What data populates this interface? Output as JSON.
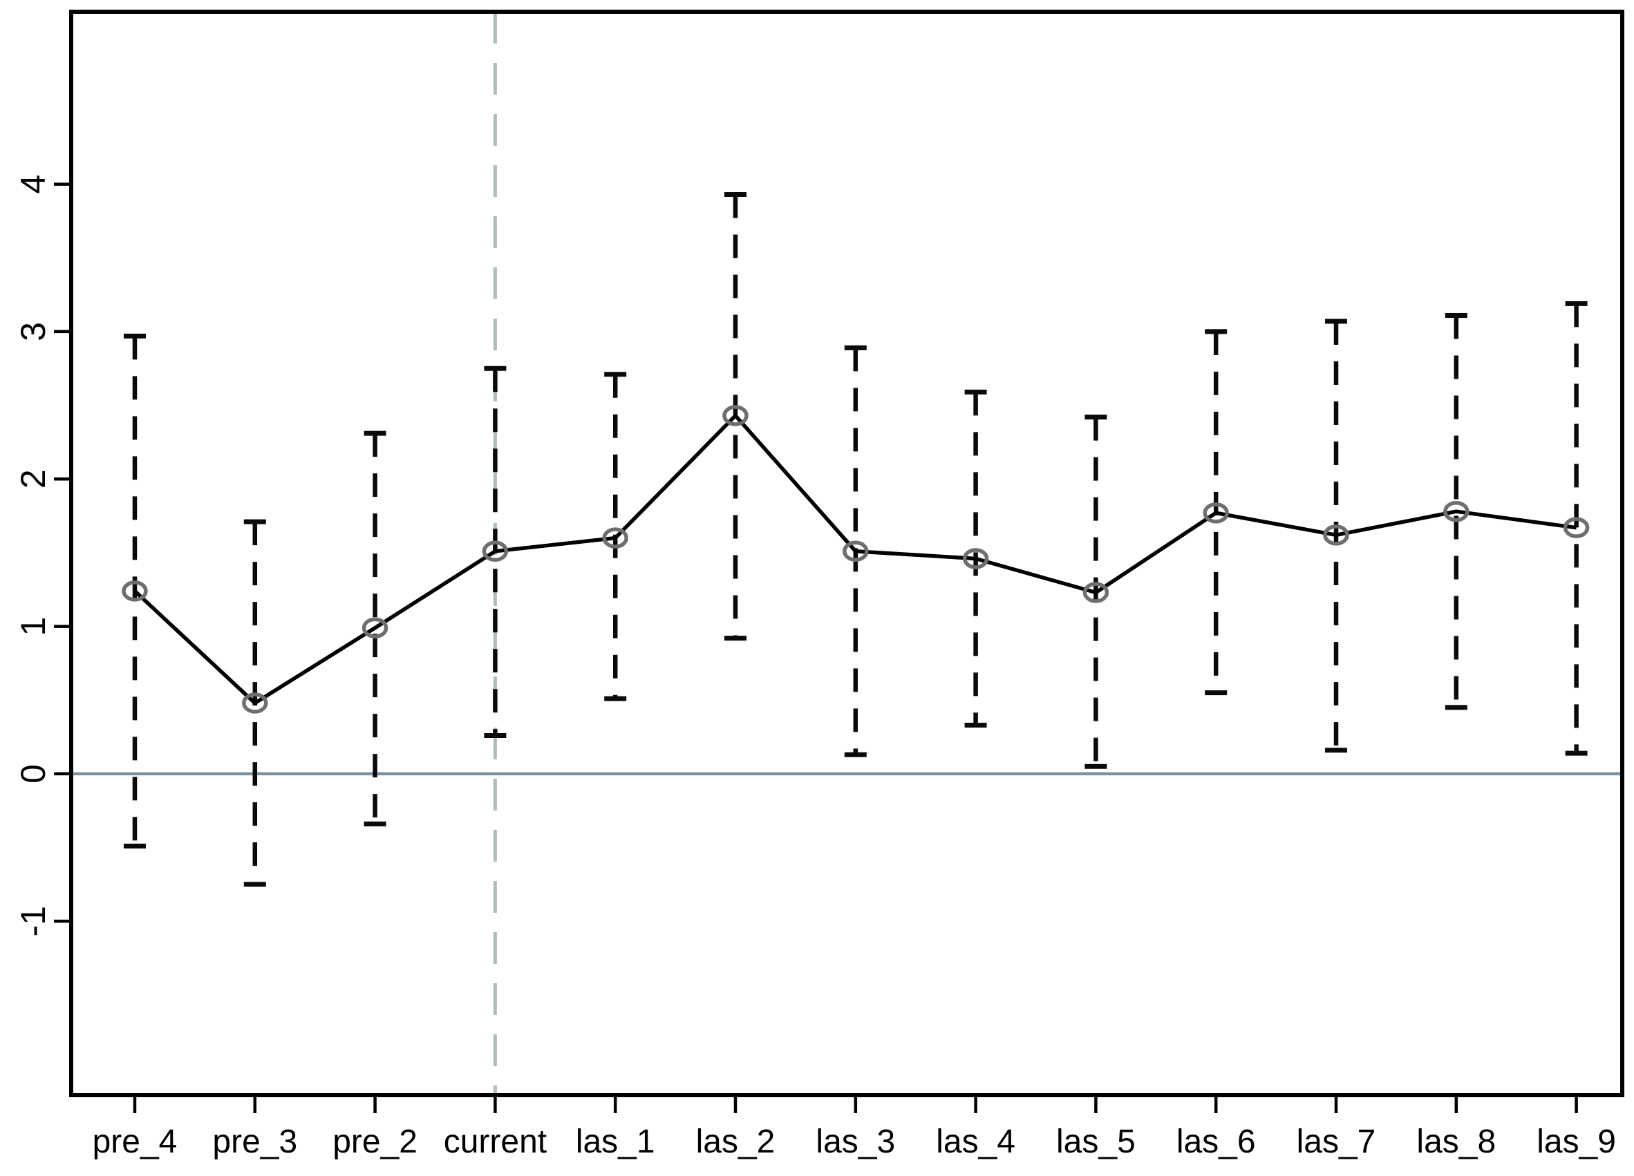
{
  "chart_data": {
    "type": "line",
    "title": "",
    "xlabel": "",
    "ylabel": "",
    "grid": false,
    "legend_position": "none",
    "categories": [
      "pre_4",
      "pre_3",
      "pre_2",
      "current",
      "las_1",
      "las_2",
      "las_3",
      "las_4",
      "las_5",
      "las_6",
      "las_7",
      "las_8",
      "las_9"
    ],
    "series": [
      {
        "name": "estimate",
        "marker": "open-circle",
        "values": [
          1.24,
          0.48,
          0.99,
          1.51,
          1.6,
          2.43,
          1.51,
          1.46,
          1.23,
          1.77,
          1.62,
          1.78,
          1.67
        ]
      }
    ],
    "error_bars": {
      "style": "dashed-whisker-with-caps",
      "low": [
        -0.49,
        -0.75,
        -0.34,
        0.26,
        0.51,
        0.92,
        0.13,
        0.33,
        0.05,
        0.55,
        0.16,
        0.45,
        0.14
      ],
      "high": [
        2.97,
        1.71,
        2.31,
        2.75,
        2.71,
        3.93,
        2.89,
        2.59,
        2.42,
        3.0,
        3.07,
        3.11,
        3.19
      ]
    },
    "yticks": [
      -1,
      0,
      1,
      2,
      3,
      4
    ],
    "ylim": [
      -2.18,
      5.17
    ],
    "reference_lines": {
      "horizontal_zero": {
        "y": 0,
        "style": "solid",
        "color": "#7b90a1"
      },
      "vertical_current": {
        "category": "current",
        "style": "dashed",
        "color": "#aebdb6"
      }
    },
    "colors": {
      "line": "#000000",
      "marker_stroke": "#6e6e6e",
      "error_bar": "#0a0a0a",
      "frame": "#000000",
      "tick": "#000000",
      "background": "#ffffff"
    }
  }
}
